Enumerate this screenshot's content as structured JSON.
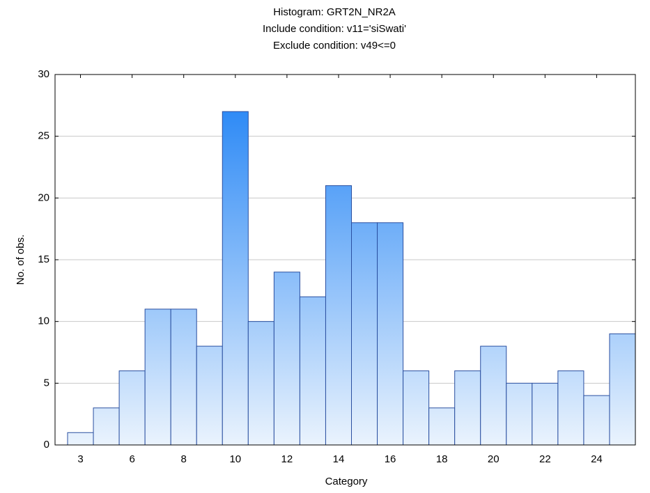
{
  "chart_data": {
    "type": "bar",
    "title": "Histogram: GRT2N_NR2A",
    "subtitle": [
      "Include condition: v11='siSwati'",
      "Exclude condition: v49<=0"
    ],
    "x_label": "Category",
    "y_label": "No. of obs.",
    "categories": [
      "3",
      null,
      "6",
      null,
      "8",
      null,
      "10",
      null,
      "12",
      null,
      "14",
      null,
      "16",
      null,
      "18",
      null,
      "20",
      null,
      "22",
      null,
      "24",
      null
    ],
    "values": [
      1,
      3,
      6,
      11,
      11,
      8,
      27,
      10,
      14,
      12,
      21,
      18,
      18,
      6,
      3,
      6,
      8,
      5,
      5,
      6,
      4,
      9
    ],
    "color": [
      "#1a7ff5",
      "#eaf3fd"
    ],
    "edge_color": "#2a4fa0",
    "ylim": [
      0,
      30
    ],
    "yticks": [
      0,
      5,
      10,
      15,
      20,
      25,
      30
    ],
    "grid": true
  }
}
